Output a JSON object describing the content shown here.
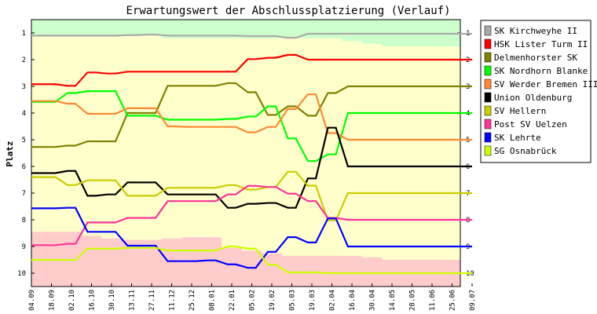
{
  "chart_data": {
    "type": "line",
    "title": "Erwartungswert der Abschlussplatzierung (Verlauf)",
    "ylabel": "Platz",
    "xlabel": "",
    "ylim": [
      1,
      10
    ],
    "y_inverted": true,
    "y_ticks": [
      "1",
      "2",
      "3",
      "4",
      "5",
      "6",
      "7",
      "8",
      "9",
      "10"
    ],
    "grid": false,
    "legend_position": "right",
    "categories": [
      "04.09",
      "18.09",
      "02.10",
      "16.10",
      "30.10",
      "13.11",
      "27.11",
      "11.12",
      "25.12",
      "08.01",
      "22.01",
      "05.02",
      "19.02",
      "05.03",
      "19.03",
      "02.04",
      "16.04",
      "30.04",
      "14.05",
      "28.05",
      "11.06",
      "25.06",
      "09.07"
    ],
    "zones": [
      {
        "name": "top",
        "color": "#ccffcc",
        "upper": [
          1.1,
          1.1,
          1.1,
          1.1,
          1.1,
          1.08,
          1.06,
          1.2,
          1.2,
          1.2,
          1.2,
          1.2,
          1.2,
          1.2,
          1.2,
          1.2,
          1.3,
          1.4,
          1.5,
          1.5,
          1.5,
          1.5,
          1.5
        ]
      },
      {
        "name": "bottom",
        "color": "#ffcccc",
        "lower": [
          8.45,
          8.45,
          8.45,
          8.6,
          8.7,
          8.75,
          8.75,
          8.7,
          8.65,
          8.65,
          9.05,
          9.15,
          9.25,
          9.35,
          9.35,
          9.35,
          9.35,
          9.4,
          9.5,
          9.5,
          9.5,
          9.5,
          9.5
        ]
      }
    ],
    "middle_color": "#ffffcc",
    "series": [
      {
        "name": "SK Kirchweyhe II",
        "color": "#aaaaaa",
        "values": [
          1.1,
          1.1,
          1.1,
          1.1,
          1.1,
          1.08,
          1.06,
          1.1,
          1.1,
          1.1,
          1.1,
          1.12,
          1.12,
          1.18,
          1.03,
          1.03,
          1.03,
          1.03,
          1.03,
          1.03,
          1.03,
          1.03,
          1.03
        ]
      },
      {
        "name": "HSK Lister Turm II",
        "color": "#ff0000",
        "values": [
          2.92,
          2.92,
          2.98,
          2.48,
          2.52,
          2.45,
          2.45,
          2.45,
          2.45,
          2.45,
          2.45,
          1.98,
          1.93,
          1.82,
          2.0,
          2.0,
          2.0,
          2.0,
          2.0,
          2.0,
          2.0,
          2.0,
          2.0
        ]
      },
      {
        "name": "Delmenhorster SK",
        "color": "#808000",
        "values": [
          5.27,
          5.27,
          5.22,
          5.06,
          5.06,
          4.0,
          4.0,
          2.98,
          2.98,
          2.98,
          2.88,
          3.22,
          4.07,
          3.75,
          4.1,
          3.25,
          3.0,
          3.0,
          3.0,
          3.0,
          3.0,
          3.0,
          3.0
        ]
      },
      {
        "name": "SK Nordhorn Blanke",
        "color": "#00ff00",
        "values": [
          3.58,
          3.58,
          3.25,
          3.18,
          3.18,
          4.1,
          4.1,
          4.25,
          4.25,
          4.25,
          4.22,
          4.13,
          3.75,
          4.95,
          5.8,
          5.55,
          4.0,
          4.0,
          4.0,
          4.0,
          4.0,
          4.0,
          4.0
        ]
      },
      {
        "name": "SV Werder Bremen III",
        "color": "#ff8833",
        "values": [
          3.55,
          3.55,
          3.65,
          4.03,
          4.03,
          3.82,
          3.82,
          4.5,
          4.52,
          4.52,
          4.52,
          4.72,
          4.52,
          3.85,
          3.3,
          4.75,
          5.0,
          5.0,
          5.0,
          5.0,
          5.0,
          5.0,
          5.0
        ]
      },
      {
        "name": "Union Oldenburg",
        "color": "#000000",
        "values": [
          6.25,
          6.25,
          6.17,
          7.1,
          7.05,
          6.6,
          6.6,
          7.05,
          7.05,
          7.05,
          7.55,
          7.4,
          7.37,
          7.55,
          6.45,
          4.55,
          6.0,
          6.0,
          6.0,
          6.0,
          6.0,
          6.0,
          6.0
        ]
      },
      {
        "name": "SV Hellern",
        "color": "#cccc00",
        "values": [
          6.4,
          6.4,
          6.7,
          6.52,
          6.52,
          7.1,
          7.1,
          6.8,
          6.8,
          6.8,
          6.7,
          6.87,
          6.77,
          6.2,
          6.72,
          8.02,
          7.0,
          7.0,
          7.0,
          7.0,
          7.0,
          7.0,
          7.0
        ]
      },
      {
        "name": "Post SV Uelzen",
        "color": "#ff3399",
        "values": [
          8.95,
          8.95,
          8.9,
          8.1,
          8.1,
          7.93,
          7.93,
          7.3,
          7.3,
          7.3,
          7.05,
          6.73,
          6.77,
          7.02,
          7.3,
          7.93,
          8.0,
          8.0,
          8.0,
          8.0,
          8.0,
          8.0,
          8.0
        ]
      },
      {
        "name": "SK Lehrte",
        "color": "#0000ff",
        "values": [
          7.57,
          7.57,
          7.55,
          8.45,
          8.45,
          8.97,
          8.97,
          9.55,
          9.55,
          9.52,
          9.67,
          9.8,
          9.2,
          8.65,
          8.85,
          7.95,
          9.0,
          9.0,
          9.0,
          9.0,
          9.0,
          9.0,
          9.0
        ]
      },
      {
        "name": "SG Osnabrück",
        "color": "#ccff00",
        "values": [
          9.5,
          9.5,
          9.5,
          9.08,
          9.08,
          9.05,
          9.05,
          9.15,
          9.15,
          9.15,
          9.0,
          9.08,
          9.68,
          9.97,
          9.97,
          10.0,
          10.0,
          10.0,
          10.0,
          10.0,
          10.0,
          10.0,
          10.0
        ]
      }
    ]
  }
}
